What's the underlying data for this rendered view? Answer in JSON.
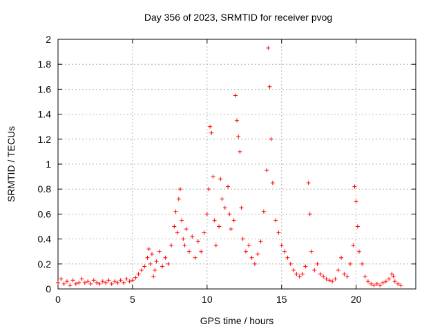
{
  "chart_data": {
    "type": "scatter",
    "title": "Day 356 of 2023, SRMTID for receiver pvog",
    "xlabel": "GPS time / hours",
    "ylabel": "SRMTID / TECUs",
    "xlim": [
      0,
      24
    ],
    "ylim": [
      0,
      2
    ],
    "xticks": [
      0,
      5,
      10,
      15,
      20
    ],
    "yticks": [
      0,
      0.2,
      0.4,
      0.6,
      0.8,
      1,
      1.2,
      1.4,
      1.6,
      1.8,
      2
    ],
    "grid": true,
    "marker": "+",
    "color": "#ff0000",
    "series": [
      {
        "name": "SRMTID",
        "points": [
          [
            0.0,
            0.05
          ],
          [
            0.2,
            0.08
          ],
          [
            0.4,
            0.04
          ],
          [
            0.6,
            0.06
          ],
          [
            0.8,
            0.03
          ],
          [
            1.0,
            0.07
          ],
          [
            1.2,
            0.04
          ],
          [
            1.4,
            0.05
          ],
          [
            1.6,
            0.08
          ],
          [
            1.8,
            0.05
          ],
          [
            2.0,
            0.06
          ],
          [
            2.2,
            0.04
          ],
          [
            2.4,
            0.07
          ],
          [
            2.6,
            0.05
          ],
          [
            2.8,
            0.04
          ],
          [
            3.0,
            0.06
          ],
          [
            3.2,
            0.05
          ],
          [
            3.4,
            0.07
          ],
          [
            3.6,
            0.04
          ],
          [
            3.8,
            0.06
          ],
          [
            4.0,
            0.05
          ],
          [
            4.2,
            0.07
          ],
          [
            4.4,
            0.05
          ],
          [
            4.6,
            0.08
          ],
          [
            4.8,
            0.06
          ],
          [
            5.0,
            0.07
          ],
          [
            5.2,
            0.09
          ],
          [
            5.4,
            0.12
          ],
          [
            5.6,
            0.15
          ],
          [
            5.8,
            0.18
          ],
          [
            6.0,
            0.25
          ],
          [
            6.1,
            0.32
          ],
          [
            6.2,
            0.2
          ],
          [
            6.3,
            0.28
          ],
          [
            6.4,
            0.1
          ],
          [
            6.5,
            0.15
          ],
          [
            6.6,
            0.22
          ],
          [
            6.8,
            0.3
          ],
          [
            7.0,
            0.18
          ],
          [
            7.2,
            0.25
          ],
          [
            7.4,
            0.2
          ],
          [
            7.6,
            0.35
          ],
          [
            7.8,
            0.5
          ],
          [
            7.9,
            0.62
          ],
          [
            8.0,
            0.45
          ],
          [
            8.1,
            0.72
          ],
          [
            8.2,
            0.8
          ],
          [
            8.3,
            0.55
          ],
          [
            8.4,
            0.4
          ],
          [
            8.5,
            0.35
          ],
          [
            8.6,
            0.48
          ],
          [
            8.8,
            0.3
          ],
          [
            9.0,
            0.42
          ],
          [
            9.2,
            0.25
          ],
          [
            9.4,
            0.38
          ],
          [
            9.6,
            0.3
          ],
          [
            9.8,
            0.45
          ],
          [
            10.0,
            0.6
          ],
          [
            10.1,
            0.8
          ],
          [
            10.2,
            1.3
          ],
          [
            10.3,
            1.25
          ],
          [
            10.4,
            0.9
          ],
          [
            10.5,
            0.55
          ],
          [
            10.6,
            0.35
          ],
          [
            10.8,
            0.5
          ],
          [
            10.9,
            0.88
          ],
          [
            11.0,
            0.72
          ],
          [
            11.2,
            0.65
          ],
          [
            11.4,
            0.82
          ],
          [
            11.5,
            0.6
          ],
          [
            11.6,
            0.48
          ],
          [
            11.8,
            0.55
          ],
          [
            11.9,
            1.55
          ],
          [
            12.0,
            1.35
          ],
          [
            12.1,
            1.22
          ],
          [
            12.2,
            1.1
          ],
          [
            12.3,
            0.65
          ],
          [
            12.4,
            0.4
          ],
          [
            12.6,
            0.3
          ],
          [
            12.8,
            0.35
          ],
          [
            13.0,
            0.25
          ],
          [
            13.2,
            0.2
          ],
          [
            13.4,
            0.28
          ],
          [
            13.6,
            0.38
          ],
          [
            13.8,
            0.62
          ],
          [
            14.0,
            0.95
          ],
          [
            14.1,
            1.93
          ],
          [
            14.2,
            1.62
          ],
          [
            14.3,
            1.2
          ],
          [
            14.4,
            0.85
          ],
          [
            14.6,
            0.55
          ],
          [
            14.8,
            0.45
          ],
          [
            15.0,
            0.35
          ],
          [
            15.2,
            0.3
          ],
          [
            15.4,
            0.25
          ],
          [
            15.6,
            0.2
          ],
          [
            15.8,
            0.15
          ],
          [
            16.0,
            0.12
          ],
          [
            16.2,
            0.1
          ],
          [
            16.4,
            0.12
          ],
          [
            16.6,
            0.18
          ],
          [
            16.8,
            0.85
          ],
          [
            16.9,
            0.6
          ],
          [
            17.0,
            0.3
          ],
          [
            17.2,
            0.15
          ],
          [
            17.4,
            0.2
          ],
          [
            17.6,
            0.12
          ],
          [
            17.8,
            0.1
          ],
          [
            18.0,
            0.08
          ],
          [
            18.2,
            0.07
          ],
          [
            18.4,
            0.06
          ],
          [
            18.6,
            0.08
          ],
          [
            18.8,
            0.15
          ],
          [
            19.0,
            0.25
          ],
          [
            19.2,
            0.12
          ],
          [
            19.4,
            0.1
          ],
          [
            19.6,
            0.2
          ],
          [
            19.8,
            0.35
          ],
          [
            19.9,
            0.82
          ],
          [
            20.0,
            0.7
          ],
          [
            20.1,
            0.5
          ],
          [
            20.2,
            0.3
          ],
          [
            20.4,
            0.2
          ],
          [
            20.6,
            0.1
          ],
          [
            20.8,
            0.06
          ],
          [
            21.0,
            0.04
          ],
          [
            21.2,
            0.03
          ],
          [
            21.4,
            0.04
          ],
          [
            21.6,
            0.03
          ],
          [
            21.8,
            0.05
          ],
          [
            22.0,
            0.06
          ],
          [
            22.2,
            0.08
          ],
          [
            22.4,
            0.12
          ],
          [
            22.5,
            0.1
          ],
          [
            22.6,
            0.06
          ],
          [
            22.8,
            0.04
          ],
          [
            23.0,
            0.03
          ]
        ]
      }
    ]
  }
}
